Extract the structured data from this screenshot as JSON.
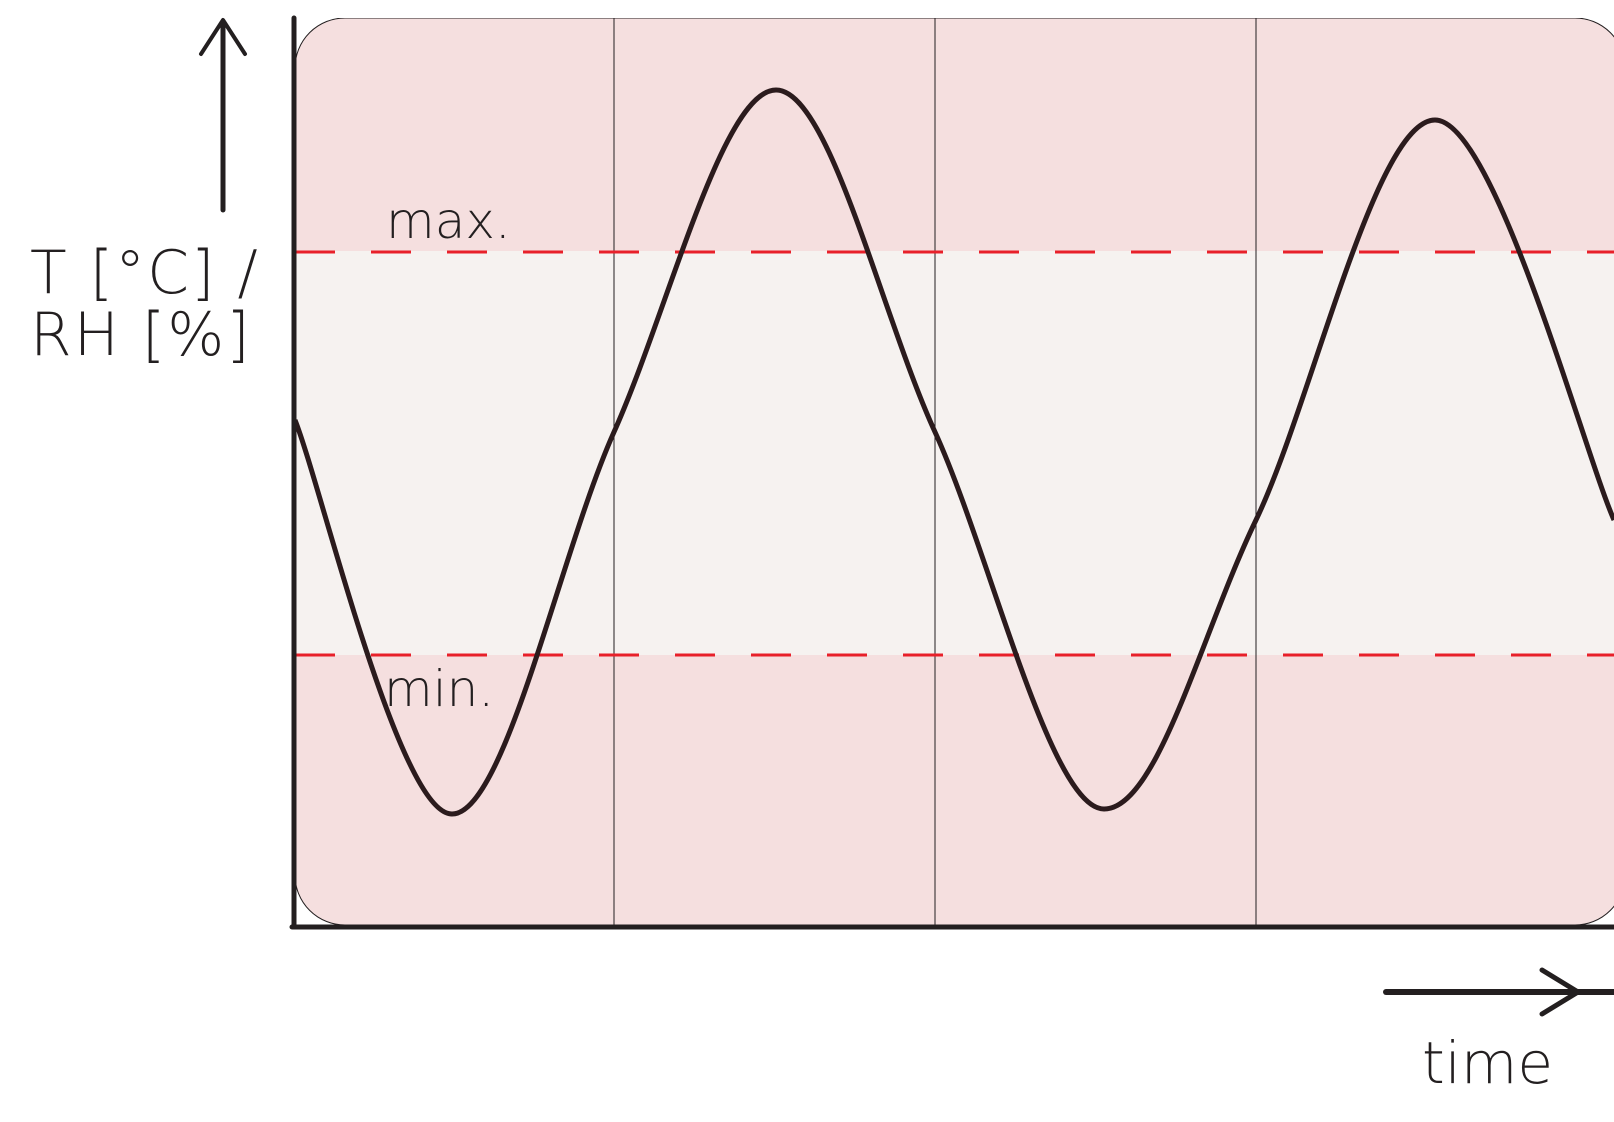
{
  "axes": {
    "y_label_line1": "T [°C] /",
    "y_label_line2": "RH [%]",
    "x_label": "time"
  },
  "thresholds": {
    "max_label": "max.",
    "min_label": "min."
  },
  "colors": {
    "out_of_range_band": "#f5dfdf",
    "in_range_band": "#f6f2f0",
    "threshold_line": "#e8202a",
    "curve": "#2b1b1d",
    "axis": "#231f20"
  }
}
